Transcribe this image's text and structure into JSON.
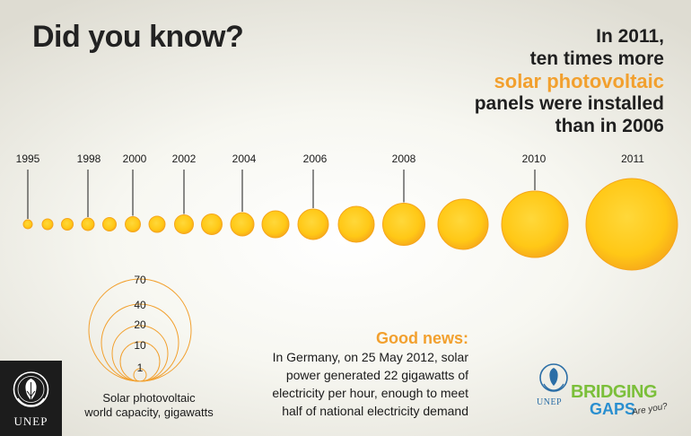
{
  "title": "Did you know?",
  "headline": {
    "line1": "In 2011,",
    "line2": "ten times more",
    "line3": "solar photovoltaic",
    "line4": "panels were installed",
    "line5": "than in 2006"
  },
  "timeline": {
    "labels": [
      "1995",
      "1998",
      "2000",
      "2002",
      "2004",
      "2006",
      "2008",
      "2010",
      "2011"
    ],
    "sun_count": 17
  },
  "legend": {
    "values": [
      "70",
      "40",
      "20",
      "10",
      "1"
    ],
    "caption_line1": "Solar photovoltaic",
    "caption_line2": "world capacity, gigawatts"
  },
  "good_news": {
    "title": "Good news:",
    "line1": "In Germany, on 25 May 2012, solar",
    "line2": "power generated 22 gigawatts of",
    "line3": "electricity per hour, enough to meet",
    "line4": "half of national electricity demand"
  },
  "logos": {
    "unep": "UNEP",
    "bridging_unep": "UNEP",
    "bridging_word1": "BRIDGING",
    "bridging_word2": "GAPS",
    "bridging_word3": "Are you?"
  },
  "colors": {
    "accent": "#f2a02e",
    "sun_fill": "#ffc816",
    "sun_edge": "#f5a51c"
  }
}
